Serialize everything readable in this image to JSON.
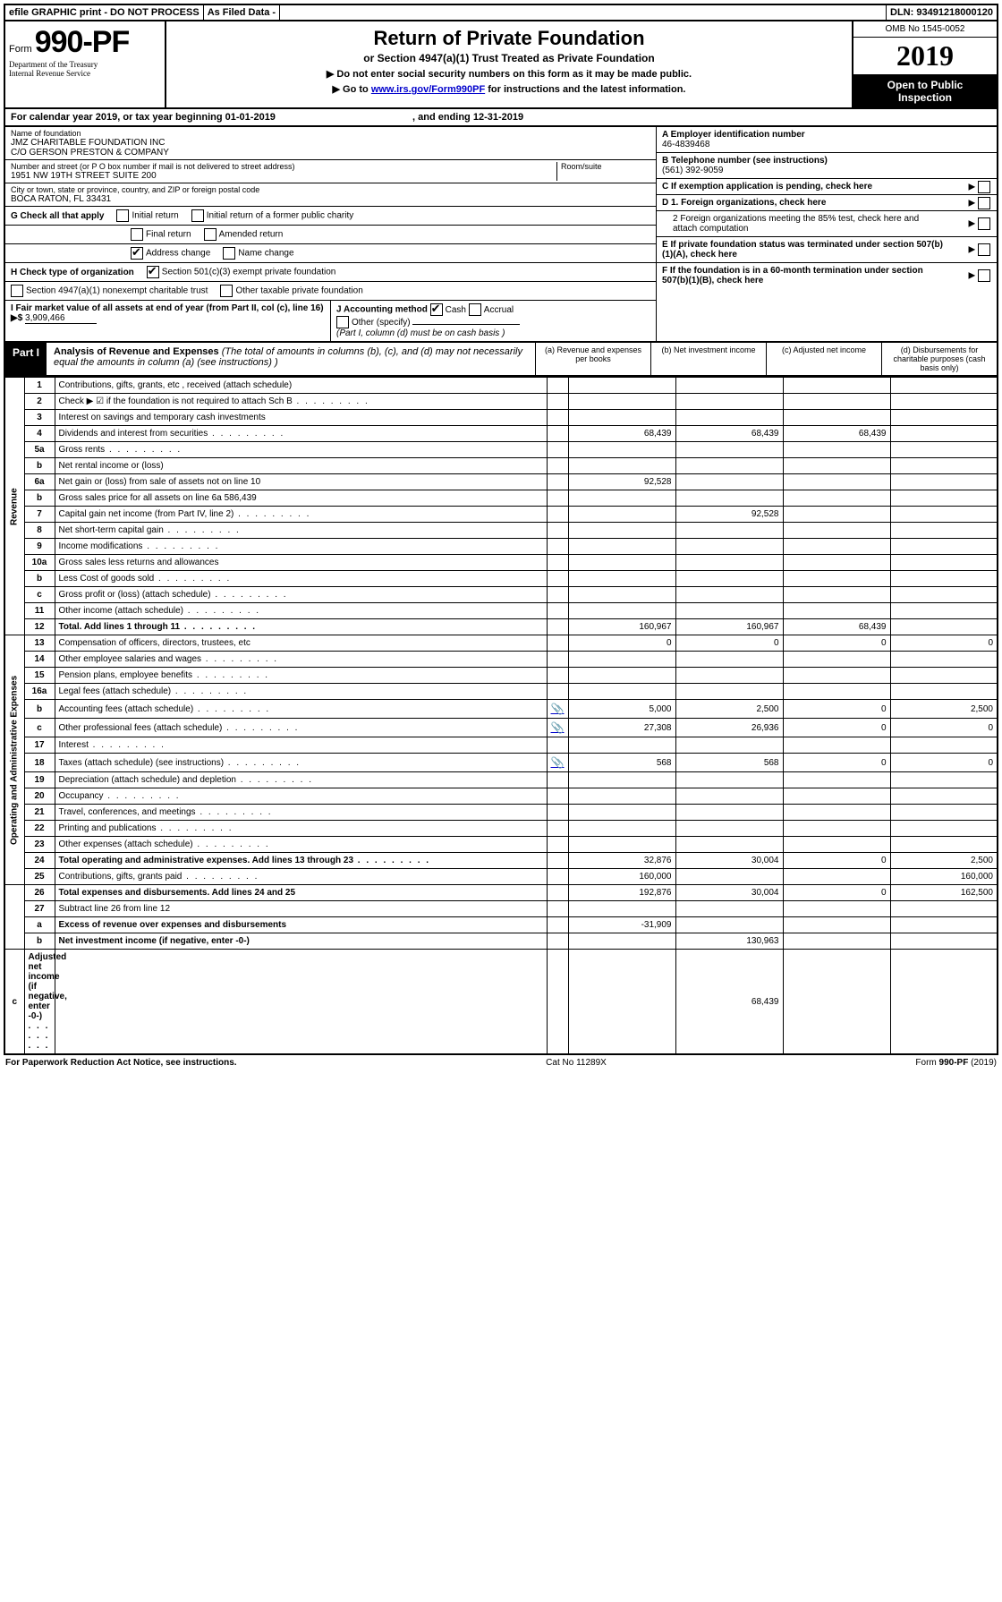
{
  "topbar": {
    "efile": "efile GRAPHIC print - DO NOT PROCESS",
    "asfiled": "As Filed Data -",
    "dln_label": "DLN:",
    "dln": "93491218000120"
  },
  "header": {
    "form_prefix": "Form",
    "form_no": "990-PF",
    "dept1": "Department of the Treasury",
    "dept2": "Internal Revenue Service",
    "title": "Return of Private Foundation",
    "subtitle": "or Section 4947(a)(1) Trust Treated as Private Foundation",
    "note1": "▶ Do not enter social security numbers on this form as it may be made public.",
    "note2_pre": "▶ Go to ",
    "note2_link": "www.irs.gov/Form990PF",
    "note2_post": " for instructions and the latest information.",
    "omb": "OMB No 1545-0052",
    "year": "2019",
    "inspection1": "Open to Public",
    "inspection2": "Inspection"
  },
  "calendar": {
    "text_pre": "For calendar year 2019, or tax year beginning ",
    "begin": "01-01-2019",
    "mid": " , and ending ",
    "end": "12-31-2019"
  },
  "info": {
    "name_label": "Name of foundation",
    "name1": "JMZ CHARITABLE FOUNDATION INC",
    "name2": "C/O GERSON PRESTON & COMPANY",
    "addr_label": "Number and street (or P O  box number if mail is not delivered to street address)",
    "addr": "1951 NW 19TH STREET SUITE 200",
    "room_label": "Room/suite",
    "city_label": "City or town, state or province, country, and ZIP or foreign postal code",
    "city": "BOCA RATON, FL  33431",
    "a_label": "A Employer identification number",
    "a_val": "46-4839468",
    "b_label": "B Telephone number (see instructions)",
    "b_val": "(561) 392-9059",
    "c_label": "C If exemption application is pending, check here",
    "g_label": "G Check all that apply",
    "g_opts": [
      "Initial return",
      "Initial return of a former public charity",
      "Final return",
      "Amended return",
      "Address change",
      "Name change"
    ],
    "d1": "D 1. Foreign organizations, check here",
    "d2": "2 Foreign organizations meeting the 85% test, check here and attach computation",
    "e": "E  If private foundation status was terminated under section 507(b)(1)(A), check here",
    "h_label": "H Check type of organization",
    "h1": "Section 501(c)(3) exempt private foundation",
    "h2": "Section 4947(a)(1) nonexempt charitable trust",
    "h3": "Other taxable private foundation",
    "i_label": "I Fair market value of all assets at end of year (from Part II, col  (c), line 16) ▶$",
    "i_val": "3,909,466",
    "j_label": "J Accounting method",
    "j_cash": "Cash",
    "j_accrual": "Accrual",
    "j_other": "Other (specify)",
    "j_note": "(Part I, column (d) must be on cash basis )",
    "f": "F  If the foundation is in a 60-month termination under section 507(b)(1)(B), check here"
  },
  "part1": {
    "label": "Part I",
    "title": "Analysis of Revenue and Expenses",
    "title_note": "(The total of amounts in columns (b), (c), and (d) may not necessarily equal the amounts in column (a) (see instructions) )",
    "col_a": "(a)  Revenue and expenses per books",
    "col_b": "(b) Net investment income",
    "col_c": "(c) Adjusted net income",
    "col_d": "(d) Disbursements for charitable purposes (cash basis only)"
  },
  "sections": {
    "revenue": "Revenue",
    "expenses": "Operating and Administrative Expenses"
  },
  "rows": [
    {
      "n": "1",
      "d": "Contributions, gifts, grants, etc , received (attach schedule)"
    },
    {
      "n": "2",
      "d": "Check ▶ ☑ if the foundation is not required to attach Sch B",
      "dots": true
    },
    {
      "n": "3",
      "d": "Interest on savings and temporary cash investments"
    },
    {
      "n": "4",
      "d": "Dividends and interest from securities",
      "dots": true,
      "a": "68,439",
      "b": "68,439",
      "c": "68,439"
    },
    {
      "n": "5a",
      "d": "Gross rents",
      "dots": true
    },
    {
      "n": "b",
      "d": "Net rental income or (loss)"
    },
    {
      "n": "6a",
      "d": "Net gain or (loss) from sale of assets not on line 10",
      "a": "92,528"
    },
    {
      "n": "b",
      "d": "Gross sales price for all assets on line 6a            586,439"
    },
    {
      "n": "7",
      "d": "Capital gain net income (from Part IV, line 2)",
      "dots": true,
      "b": "92,528"
    },
    {
      "n": "8",
      "d": "Net short-term capital gain",
      "dots": true
    },
    {
      "n": "9",
      "d": "Income modifications",
      "dots": true
    },
    {
      "n": "10a",
      "d": "Gross sales less returns and allowances"
    },
    {
      "n": "b",
      "d": "Less  Cost of goods sold",
      "dots": true
    },
    {
      "n": "c",
      "d": "Gross profit or (loss) (attach schedule)",
      "dots": true
    },
    {
      "n": "11",
      "d": "Other income (attach schedule)",
      "dots": true
    },
    {
      "n": "12",
      "d": "Total. Add lines 1 through 11",
      "dots": true,
      "bold": true,
      "a": "160,967",
      "b": "160,967",
      "c": "68,439"
    },
    {
      "n": "13",
      "d": "Compensation of officers, directors, trustees, etc",
      "a": "0",
      "b": "0",
      "c": "0",
      "dcol": "0"
    },
    {
      "n": "14",
      "d": "Other employee salaries and wages",
      "dots": true
    },
    {
      "n": "15",
      "d": "Pension plans, employee benefits",
      "dots": true
    },
    {
      "n": "16a",
      "d": "Legal fees (attach schedule)",
      "dots": true
    },
    {
      "n": "b",
      "d": "Accounting fees (attach schedule)",
      "dots": true,
      "icon": true,
      "a": "5,000",
      "b": "2,500",
      "c": "0",
      "dcol": "2,500"
    },
    {
      "n": "c",
      "d": "Other professional fees (attach schedule)",
      "dots": true,
      "icon": true,
      "a": "27,308",
      "b": "26,936",
      "c": "0",
      "dcol": "0"
    },
    {
      "n": "17",
      "d": "Interest",
      "dots": true
    },
    {
      "n": "18",
      "d": "Taxes (attach schedule) (see instructions)",
      "dots": true,
      "icon": true,
      "a": "568",
      "b": "568",
      "c": "0",
      "dcol": "0"
    },
    {
      "n": "19",
      "d": "Depreciation (attach schedule) and depletion",
      "dots": true
    },
    {
      "n": "20",
      "d": "Occupancy",
      "dots": true
    },
    {
      "n": "21",
      "d": "Travel, conferences, and meetings",
      "dots": true
    },
    {
      "n": "22",
      "d": "Printing and publications",
      "dots": true
    },
    {
      "n": "23",
      "d": "Other expenses (attach schedule)",
      "dots": true
    },
    {
      "n": "24",
      "d": "Total operating and administrative expenses. Add lines 13 through 23",
      "dots": true,
      "bold": true,
      "a": "32,876",
      "b": "30,004",
      "c": "0",
      "dcol": "2,500"
    },
    {
      "n": "25",
      "d": "Contributions, gifts, grants paid",
      "dots": true,
      "a": "160,000",
      "dcol": "160,000"
    },
    {
      "n": "26",
      "d": "Total expenses and disbursements. Add lines 24 and 25",
      "bold": true,
      "a": "192,876",
      "b": "30,004",
      "c": "0",
      "dcol": "162,500"
    },
    {
      "n": "27",
      "d": "Subtract line 26 from line 12"
    },
    {
      "n": "a",
      "d": "Excess of revenue over expenses and disbursements",
      "bold": true,
      "a": "-31,909"
    },
    {
      "n": "b",
      "d": "Net investment income (if negative, enter -0-)",
      "bold": true,
      "b": "130,963"
    },
    {
      "n": "c",
      "d": "Adjusted net income (if negative, enter -0-)",
      "dots": true,
      "bold": true,
      "c": "68,439"
    }
  ],
  "footer": {
    "left": "For Paperwork Reduction Act Notice, see instructions.",
    "mid": "Cat No  11289X",
    "right": "Form 990-PF (2019)"
  }
}
